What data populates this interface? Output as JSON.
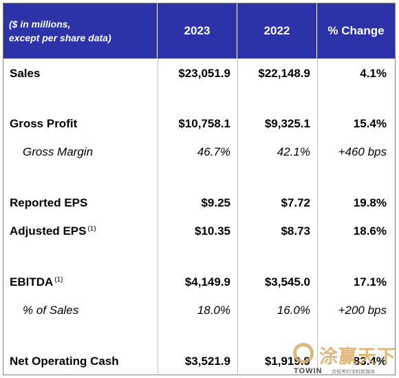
{
  "table": {
    "header": {
      "label_line1": "($ in millions,",
      "label_line2": "except per share data)",
      "col1": "2023",
      "col2": "2022",
      "col3": "% Change"
    },
    "rows": [
      {
        "label": "Sales",
        "note": "",
        "v2023": "$23,051.9",
        "v2022": "$22,148.9",
        "change": "4.1%"
      },
      {
        "label": "Gross Profit",
        "note": "",
        "v2023": "$10,758.1",
        "v2022": "$9,325.1",
        "change": "15.4%"
      },
      {
        "label": "Gross Margin",
        "note": "",
        "v2023": "46.7%",
        "v2022": "42.1%",
        "change": "+460 bps"
      },
      {
        "label": "Reported EPS",
        "note": "",
        "v2023": "$9.25",
        "v2022": "$7.72",
        "change": "19.8%"
      },
      {
        "label": "Adjusted EPS",
        "note": "(1)",
        "v2023": "$10.35",
        "v2022": "$8.73",
        "change": "18.6%"
      },
      {
        "label": "EBITDA",
        "note": "(1)",
        "v2023": "$4,149.9",
        "v2022": "$3,545.0",
        "change": "17.1%"
      },
      {
        "label": "% of Sales",
        "note": "",
        "v2023": "18.0%",
        "v2022": "16.0%",
        "change": "+200 bps"
      },
      {
        "label": "Net Operating Cash",
        "note": "",
        "v2023": "$3,521.9",
        "v2022": "$1,919.9",
        "change": "83.4%"
      }
    ]
  },
  "watermark": {
    "chinese": "涂赢天下",
    "english": "TOWIN",
    "tagline": "合规考的涂料新媒体"
  },
  "colors": {
    "header_bg": "#2c33a8",
    "header_text": "#ffffff",
    "grid_line": "#bfbfbf"
  }
}
